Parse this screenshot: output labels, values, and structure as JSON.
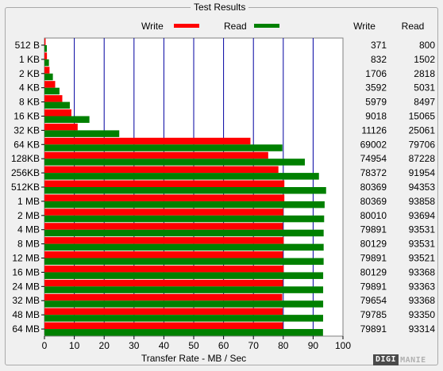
{
  "group_title": "Test Results",
  "watermark": {
    "box": "DIGI",
    "text": "MANIE"
  },
  "colors": {
    "write": "#ff0000",
    "read": "#008000",
    "grid": "#0000a0",
    "plot_bg": "#ffffff"
  },
  "chart_data": {
    "type": "bar",
    "orientation": "horizontal",
    "title": "",
    "xlabel": "Transfer Rate - MB / Sec",
    "ylabel": "",
    "xlim": [
      0,
      100
    ],
    "x_ticks": [
      "0",
      "10",
      "20",
      "30",
      "40",
      "50",
      "60",
      "70",
      "80",
      "90",
      "100"
    ],
    "grid": true,
    "legend": "top",
    "table_headers": [
      "Write",
      "Read"
    ],
    "categories": [
      "512 B",
      "1 KB",
      "2 KB",
      "4 KB",
      "8 KB",
      "16 KB",
      "32 KB",
      "64 KB",
      "128KB",
      "256KB",
      "512KB",
      "1 MB",
      "2 MB",
      "4 MB",
      "8 MB",
      "12 MB",
      "16 MB",
      "24 MB",
      "32 MB",
      "48 MB",
      "64 MB"
    ],
    "series": [
      {
        "name": "Write",
        "color": "#ff0000",
        "values": [
          371,
          832,
          1706,
          3592,
          5979,
          9018,
          11126,
          69002,
          74954,
          78372,
          80369,
          80369,
          80010,
          79891,
          80129,
          79891,
          80129,
          79891,
          79654,
          79785,
          79891
        ]
      },
      {
        "name": "Read",
        "color": "#008000",
        "values": [
          800,
          1502,
          2818,
          5031,
          8497,
          15065,
          25061,
          79706,
          87228,
          91954,
          94353,
          93858,
          93694,
          93531,
          93531,
          93521,
          93368,
          93363,
          93368,
          93350,
          93314
        ]
      }
    ],
    "value_unit_note": ""
  }
}
